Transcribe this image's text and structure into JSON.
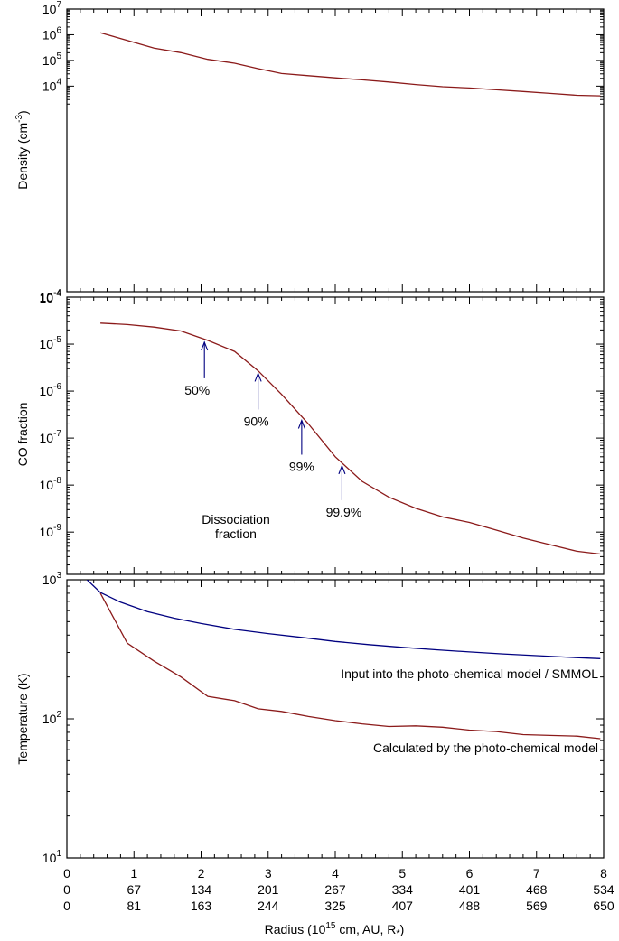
{
  "chart_data": [
    {
      "type": "line",
      "xlabel": "",
      "ylabel": "Density (cm<sup>-3</sup>)",
      "ylabel_text": "Density (cm",
      "ylabel_sup": "-3",
      "ylabel_close": ")",
      "yscale": "log",
      "ylim_exp": [
        -4,
        7
      ],
      "ytick_exps": [
        4,
        5,
        6,
        7
      ],
      "bottom_tick_label_exp": "-4",
      "xlim": [
        0,
        8
      ],
      "series": [
        {
          "color": "#8b1a1a",
          "x": [
            0.5,
            0.9,
            1.3,
            1.7,
            2.1,
            2.5,
            2.85,
            3.2,
            3.6,
            4.0,
            4.4,
            4.8,
            5.2,
            5.6,
            6.0,
            6.4,
            6.8,
            7.2,
            7.6,
            7.95
          ],
          "y": [
            1200000.0,
            600000.0,
            300000.0,
            200000.0,
            110000.0,
            78000.0,
            48000.0,
            31000.0,
            25500.0,
            21000.0,
            17500.0,
            14500.0,
            11500.0,
            9500.0,
            8500.0,
            7200.0,
            6200.0,
            5200.0,
            4400.0,
            4200.0
          ]
        }
      ]
    },
    {
      "type": "line",
      "ylabel": "CO fraction",
      "yscale": "log",
      "ylim_exp": [
        -9.9,
        -4
      ],
      "ytick_exps": [
        -9,
        -8,
        -7,
        -6,
        -5,
        -4
      ],
      "xlim": [
        0,
        8
      ],
      "series": [
        {
          "color": "#8b1a1a",
          "x": [
            0.5,
            0.9,
            1.3,
            1.7,
            2.1,
            2.5,
            2.85,
            3.2,
            3.6,
            4.0,
            4.4,
            4.8,
            5.2,
            5.6,
            6.0,
            6.4,
            6.8,
            7.2,
            7.6,
            7.95
          ],
          "y": [
            2.8e-05,
            2.6e-05,
            2.3e-05,
            1.9e-05,
            1.2e-05,
            7e-06,
            2.7e-06,
            8.5e-07,
            2e-07,
            4e-08,
            1.2e-08,
            5.5e-09,
            3.2e-09,
            2.1e-09,
            1.6e-09,
            1.1e-09,
            7.5e-10,
            5.4e-10,
            3.9e-10,
            3.4e-10
          ]
        }
      ],
      "annotations": [
        {
          "label": "50%",
          "x": 2.05,
          "y": 1.2e-05,
          "len": 30,
          "tdx": -8,
          "tdy": 18
        },
        {
          "label": "90%",
          "x": 2.85,
          "y": 2.6e-06,
          "len": 30,
          "tdx": -2,
          "tdy": 18
        },
        {
          "label": "99%",
          "x": 3.5,
          "y": 2.6e-07,
          "len": 28,
          "tdx": 0,
          "tdy": 18
        },
        {
          "label": "99.9%",
          "x": 4.1,
          "y": 2.8e-08,
          "len": 28,
          "tdx": 2,
          "tdy": 18
        }
      ],
      "note_line1": "Dissociation",
      "note_line2": "fraction"
    },
    {
      "type": "line",
      "ylabel": "Temperature (K)",
      "yscale": "log",
      "ylim_exp": [
        1,
        3
      ],
      "ytick_exps": [
        1,
        2,
        3
      ],
      "xlim": [
        0,
        8
      ],
      "series": [
        {
          "name": "Input into the photo-chemical model / SMMOL",
          "color": "#000080",
          "x": [
            0.3,
            0.5,
            0.8,
            1.2,
            1.6,
            2.0,
            2.5,
            3.0,
            3.5,
            4.0,
            4.5,
            5.0,
            5.5,
            6.0,
            6.5,
            7.0,
            7.5,
            7.95
          ],
          "y": [
            1000,
            810,
            690,
            590,
            530,
            485,
            440,
            410,
            385,
            360,
            342,
            327,
            314,
            303,
            293,
            285,
            277,
            271
          ]
        },
        {
          "name": "Calculated by the photo-chemical model",
          "color": "#8b1a1a",
          "x": [
            0.5,
            0.9,
            1.3,
            1.7,
            2.1,
            2.5,
            2.85,
            3.2,
            3.6,
            4.0,
            4.4,
            4.8,
            5.2,
            5.6,
            6.0,
            6.4,
            6.8,
            7.2,
            7.6,
            7.95
          ],
          "y": [
            800,
            350,
            260,
            200,
            145,
            135,
            118,
            113,
            104,
            97,
            92,
            88,
            89,
            87,
            83,
            81,
            77,
            76,
            75,
            72
          ]
        }
      ]
    }
  ],
  "xaxis": {
    "ticks": [
      0,
      1,
      2,
      3,
      4,
      5,
      6,
      7,
      8
    ],
    "row1": [
      "0",
      "1",
      "2",
      "3",
      "4",
      "5",
      "6",
      "7",
      "8"
    ],
    "row2": [
      "0",
      "67",
      "134",
      "201",
      "267",
      "334",
      "401",
      "468",
      "534"
    ],
    "row3": [
      "0",
      "81",
      "163",
      "244",
      "325",
      "407",
      "488",
      "569",
      "650"
    ],
    "label_main": "Radius (10",
    "label_sup": "15",
    "label_rest": " cm, AU, R",
    "label_star": "*",
    "label_close": ")"
  }
}
